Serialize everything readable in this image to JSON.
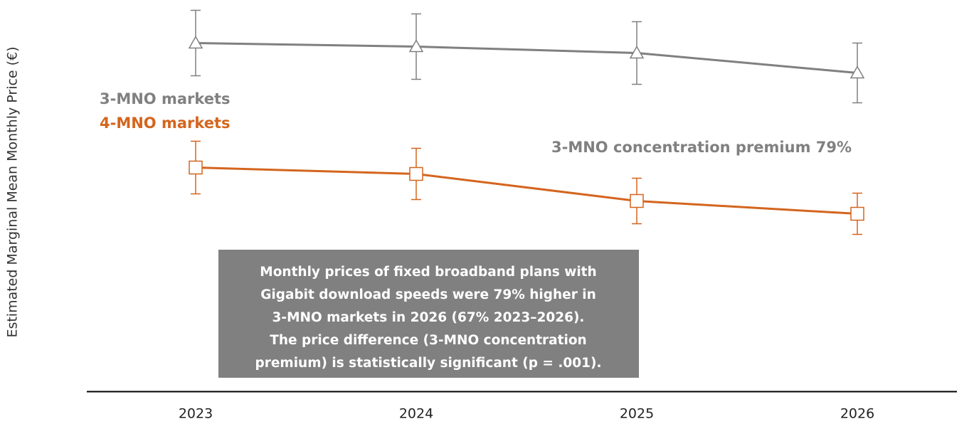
{
  "chart_data": {
    "type": "line",
    "ylabel": "Estimated Marginal Mean Monthly Price (€)",
    "categories": [
      "2023",
      "2024",
      "2025",
      "2026"
    ],
    "series": [
      {
        "name": "3-MNO markets",
        "color": "#808080",
        "marker": "triangle",
        "values": [
          49,
          48.5,
          47.6,
          44.8
        ],
        "errors": [
          4.6,
          4.6,
          4.4,
          4.2
        ]
      },
      {
        "name": "4-MNO markets",
        "color": "#d4651e",
        "marker": "square",
        "values": [
          31.5,
          30.6,
          26.8,
          25
        ],
        "errors": [
          3.7,
          3.6,
          3.2,
          2.9
        ]
      }
    ],
    "ylim": [
      0,
      55
    ],
    "annotation": "3-MNO concentration premium 79%",
    "note_lines": [
      "Monthly prices of fixed broadband plans with",
      "Gigabit download speeds were 79% higher in",
      "3-MNO markets in 2026 (67% 2023–2026).",
      "The price difference (3-MNO concentration",
      "premium) is statistically significant (p = .001)."
    ]
  }
}
